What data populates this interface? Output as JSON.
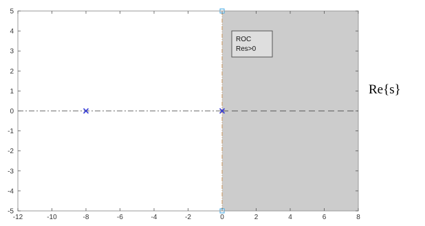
{
  "chart_data": {
    "type": "scatter",
    "title": "",
    "xlabel": "",
    "ylabel": "",
    "xlim": [
      -12,
      8
    ],
    "ylim": [
      -5,
      5
    ],
    "x_ticks": [
      -12,
      -10,
      -8,
      -6,
      -4,
      -2,
      0,
      2,
      4,
      6,
      8
    ],
    "y_ticks": [
      -5,
      -4,
      -3,
      -2,
      -1,
      0,
      1,
      2,
      3,
      4,
      5
    ],
    "grid": false,
    "poles": [
      {
        "x": -8,
        "y": 0
      },
      {
        "x": 0,
        "y": 0
      }
    ],
    "roc_region": {
      "x_from": 0,
      "x_to": 8,
      "y_from": -5,
      "y_to": 5
    },
    "boundary_x": 0,
    "boundary_markers": [
      {
        "x": 0,
        "y": 5
      },
      {
        "x": 0,
        "y": -5
      }
    ],
    "annotation_lines": [
      "ROC",
      "Res>0"
    ],
    "side_label": "Re{s}",
    "colors": {
      "region_fill": "#cccccc",
      "pole_marker": "#3a3fd6",
      "axis_dash": "#6e6e6e",
      "boundary_line": "#c9935a",
      "boundary_marker": "#3aa3e0",
      "axes_frame": "#9a9a9a",
      "annotation_bg": "#dedede"
    }
  }
}
